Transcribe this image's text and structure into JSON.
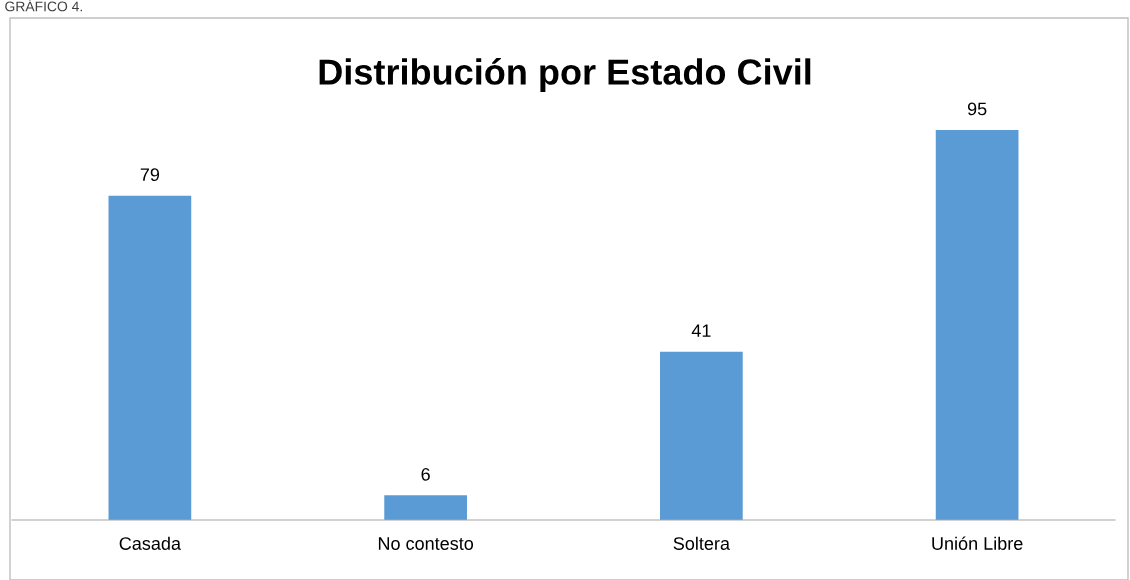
{
  "chart_data": {
    "type": "bar",
    "title": "Distribución por Estado Civil",
    "categories": [
      "Casada",
      "No contesto",
      "Soltera",
      "Unión Libre"
    ],
    "values": [
      79,
      6,
      41,
      95
    ],
    "color": "#5b9bd5",
    "data_labels": true,
    "grid": false,
    "legend": false,
    "tick_labels": "x",
    "annotations": [
      "GRÁFICO 4."
    ]
  }
}
